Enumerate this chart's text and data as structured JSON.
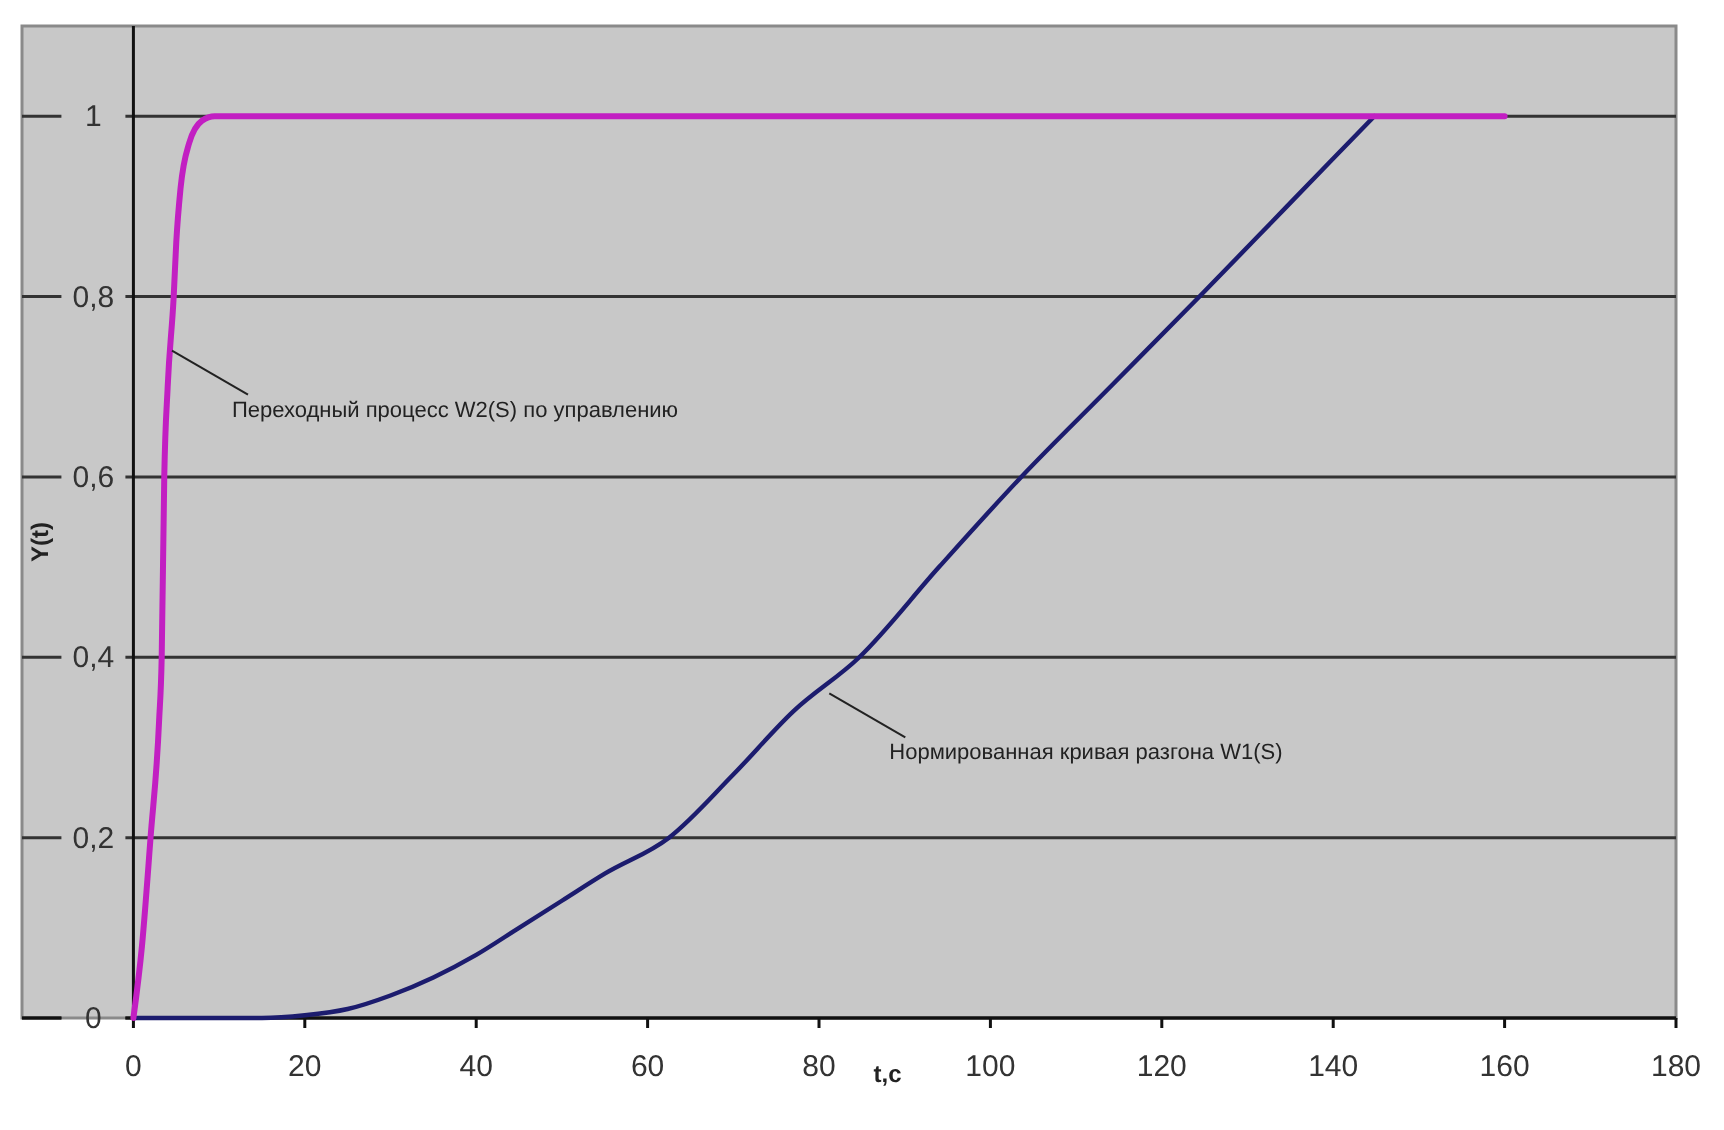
{
  "chart_data": {
    "type": "line",
    "ylabel": "Y(t)",
    "xlabel": "t,c",
    "xlim": [
      -13,
      180
    ],
    "xticks": [
      0,
      20,
      40,
      60,
      80,
      100,
      120,
      140,
      160,
      180
    ],
    "ylim": [
      0,
      1.1
    ],
    "yticks": [
      0,
      {
        "value": 0.2,
        "label": "0,2"
      },
      {
        "value": 0.4,
        "label": "0,4"
      },
      {
        "value": 0.6,
        "label": "0,6"
      },
      {
        "value": 0.8,
        "label": "0,8"
      },
      1
    ],
    "grid": "y",
    "line_style": "solid",
    "marker": "none",
    "series": [
      {
        "color": "#c21fc2",
        "x": [
          0,
          1,
          2,
          3,
          3.3,
          3.6,
          4,
          4.7,
          5,
          5.5,
          6.5,
          8,
          9.5,
          160
        ],
        "values": [
          0,
          0.08,
          0.2,
          0.33,
          0.4,
          0.6,
          0.7,
          0.8,
          0.86,
          0.92,
          0.97,
          0.995,
          1,
          1
        ]
      },
      {
        "color": "#1c1c6e",
        "x": [
          0,
          15,
          20,
          25,
          30,
          35,
          40,
          45,
          50,
          55,
          62.5,
          70,
          77,
          84.7,
          94,
          103.6,
          114,
          124.4,
          134.6,
          144.8
        ],
        "values": [
          0,
          0,
          0.003,
          0.01,
          0.025,
          0.045,
          0.07,
          0.1,
          0.13,
          0.16,
          0.2,
          0.27,
          0.34,
          0.4,
          0.5,
          0.6,
          0.7,
          0.8,
          0.9,
          1
        ]
      }
    ],
    "annotations": [
      {
        "text": "Переходный процесс W2(S) по управлению",
        "x": 4.5,
        "y": 0.74
      },
      {
        "text": "Нормированная кривая разгона W1(S)",
        "x": 81.2,
        "y": 0.36
      }
    ]
  }
}
